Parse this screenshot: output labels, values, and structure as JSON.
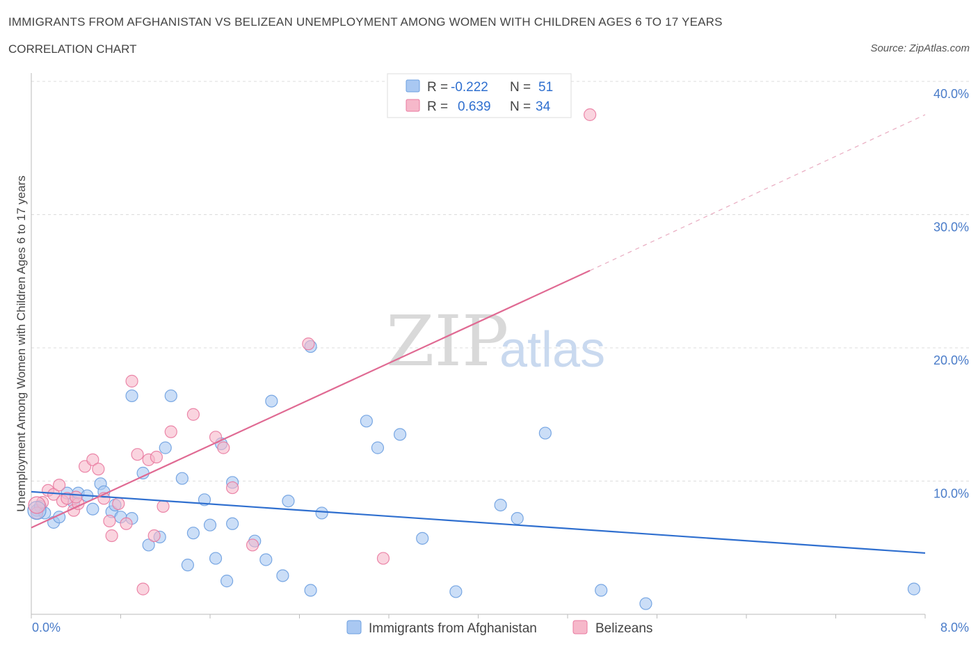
{
  "header": {
    "title": "IMMIGRANTS FROM AFGHANISTAN VS BELIZEAN UNEMPLOYMENT AMONG WOMEN WITH CHILDREN AGES 6 TO 17 YEARS",
    "subtitle": "CORRELATION CHART",
    "source": "Source: ZipAtlas.com"
  },
  "watermark": {
    "zip": "ZIP",
    "atlas": "atlas"
  },
  "legend": {
    "rows": [
      {
        "r_label": "R =",
        "r_value": "-0.222",
        "n_label": "N =",
        "n_value": "51",
        "color": "#a9c8f2"
      },
      {
        "r_label": "R =",
        "r_value": "0.639",
        "n_label": "N =",
        "n_value": "34",
        "color": "#f6b8ca"
      }
    ]
  },
  "chart_data": {
    "type": "scatter",
    "xlabel": "",
    "ylabel": "Unemployment Among Women with Children Ages 6 to 17 years",
    "xlim": [
      0,
      8
    ],
    "ylim": [
      0,
      40
    ],
    "x_tick_labels": [
      "0.0%",
      "8.0%"
    ],
    "y_tick_labels": [
      {
        "value": 10,
        "label": "10.0%"
      },
      {
        "value": 20,
        "label": "20.0%"
      },
      {
        "value": 30,
        "label": "30.0%"
      },
      {
        "value": 40,
        "label": "40.0%"
      }
    ],
    "grid": "horizontal dashed",
    "legend_position": "bottom",
    "series": [
      {
        "name": "Immigrants from Afghanistan",
        "color": "#6b9fe0",
        "fill": "#a9c8f2",
        "trend": {
          "x0": 0,
          "y0": 9.2,
          "x1": 8,
          "y1": 4.6
        },
        "points": [
          [
            0.05,
            7.8
          ],
          [
            0.08,
            8.1
          ],
          [
            0.12,
            7.6
          ],
          [
            0.2,
            6.9
          ],
          [
            0.25,
            7.3
          ],
          [
            0.32,
            9.1
          ],
          [
            0.38,
            8.4
          ],
          [
            0.42,
            9.1
          ],
          [
            0.5,
            8.9
          ],
          [
            0.55,
            7.9
          ],
          [
            0.62,
            9.8
          ],
          [
            0.65,
            9.2
          ],
          [
            0.72,
            7.7
          ],
          [
            0.75,
            8.2
          ],
          [
            0.8,
            7.3
          ],
          [
            0.9,
            7.2
          ],
          [
            0.9,
            16.4
          ],
          [
            1.0,
            10.6
          ],
          [
            1.05,
            5.2
          ],
          [
            1.15,
            5.8
          ],
          [
            1.2,
            12.5
          ],
          [
            1.25,
            16.4
          ],
          [
            1.35,
            10.2
          ],
          [
            1.4,
            3.7
          ],
          [
            1.45,
            6.1
          ],
          [
            1.55,
            8.6
          ],
          [
            1.6,
            6.7
          ],
          [
            1.65,
            4.2
          ],
          [
            1.7,
            12.8
          ],
          [
            1.75,
            2.5
          ],
          [
            1.8,
            6.8
          ],
          [
            1.8,
            9.9
          ],
          [
            2.0,
            5.5
          ],
          [
            2.1,
            4.1
          ],
          [
            2.15,
            16.0
          ],
          [
            2.25,
            2.9
          ],
          [
            2.3,
            8.5
          ],
          [
            2.5,
            1.8
          ],
          [
            2.5,
            20.1
          ],
          [
            2.6,
            7.6
          ],
          [
            3.0,
            14.5
          ],
          [
            3.1,
            12.5
          ],
          [
            3.3,
            13.5
          ],
          [
            3.5,
            5.7
          ],
          [
            3.8,
            1.7
          ],
          [
            4.2,
            8.2
          ],
          [
            4.35,
            7.2
          ],
          [
            4.6,
            13.6
          ],
          [
            5.1,
            1.8
          ],
          [
            5.5,
            0.8
          ],
          [
            7.9,
            1.9
          ]
        ]
      },
      {
        "name": "Belizeans",
        "color": "#e97aa0",
        "fill": "#f6b8ca",
        "trend": {
          "x0": 0,
          "y0": 6.5,
          "x1": 5.0,
          "y1": 25.8
        },
        "trend_dashed": {
          "x0": 5.0,
          "y0": 25.8,
          "x1": 8.0,
          "y1": 37.5
        },
        "points": [
          [
            0.05,
            7.6
          ],
          [
            0.1,
            8.4
          ],
          [
            0.15,
            9.3
          ],
          [
            0.2,
            9.0
          ],
          [
            0.25,
            9.7
          ],
          [
            0.28,
            8.5
          ],
          [
            0.32,
            8.7
          ],
          [
            0.38,
            7.8
          ],
          [
            0.42,
            8.3
          ],
          [
            0.48,
            11.1
          ],
          [
            0.55,
            11.6
          ],
          [
            0.6,
            10.9
          ],
          [
            0.65,
            8.7
          ],
          [
            0.7,
            7.0
          ],
          [
            0.72,
            5.9
          ],
          [
            0.78,
            8.3
          ],
          [
            0.85,
            6.8
          ],
          [
            0.9,
            17.5
          ],
          [
            0.95,
            12.0
          ],
          [
            1.0,
            1.9
          ],
          [
            1.05,
            11.6
          ],
          [
            1.1,
            5.9
          ],
          [
            1.12,
            11.8
          ],
          [
            1.18,
            8.1
          ],
          [
            1.25,
            13.7
          ],
          [
            1.45,
            15.0
          ],
          [
            1.65,
            13.3
          ],
          [
            1.72,
            12.5
          ],
          [
            1.8,
            9.5
          ],
          [
            1.98,
            5.2
          ],
          [
            2.48,
            20.3
          ],
          [
            3.15,
            4.2
          ],
          [
            5.0,
            37.5
          ],
          [
            0.4,
            8.8
          ]
        ]
      }
    ]
  },
  "bottom_legend": [
    {
      "label": "Immigrants from Afghanistan",
      "color": "#a9c8f2"
    },
    {
      "label": "Belizeans",
      "color": "#f6b8ca"
    }
  ]
}
